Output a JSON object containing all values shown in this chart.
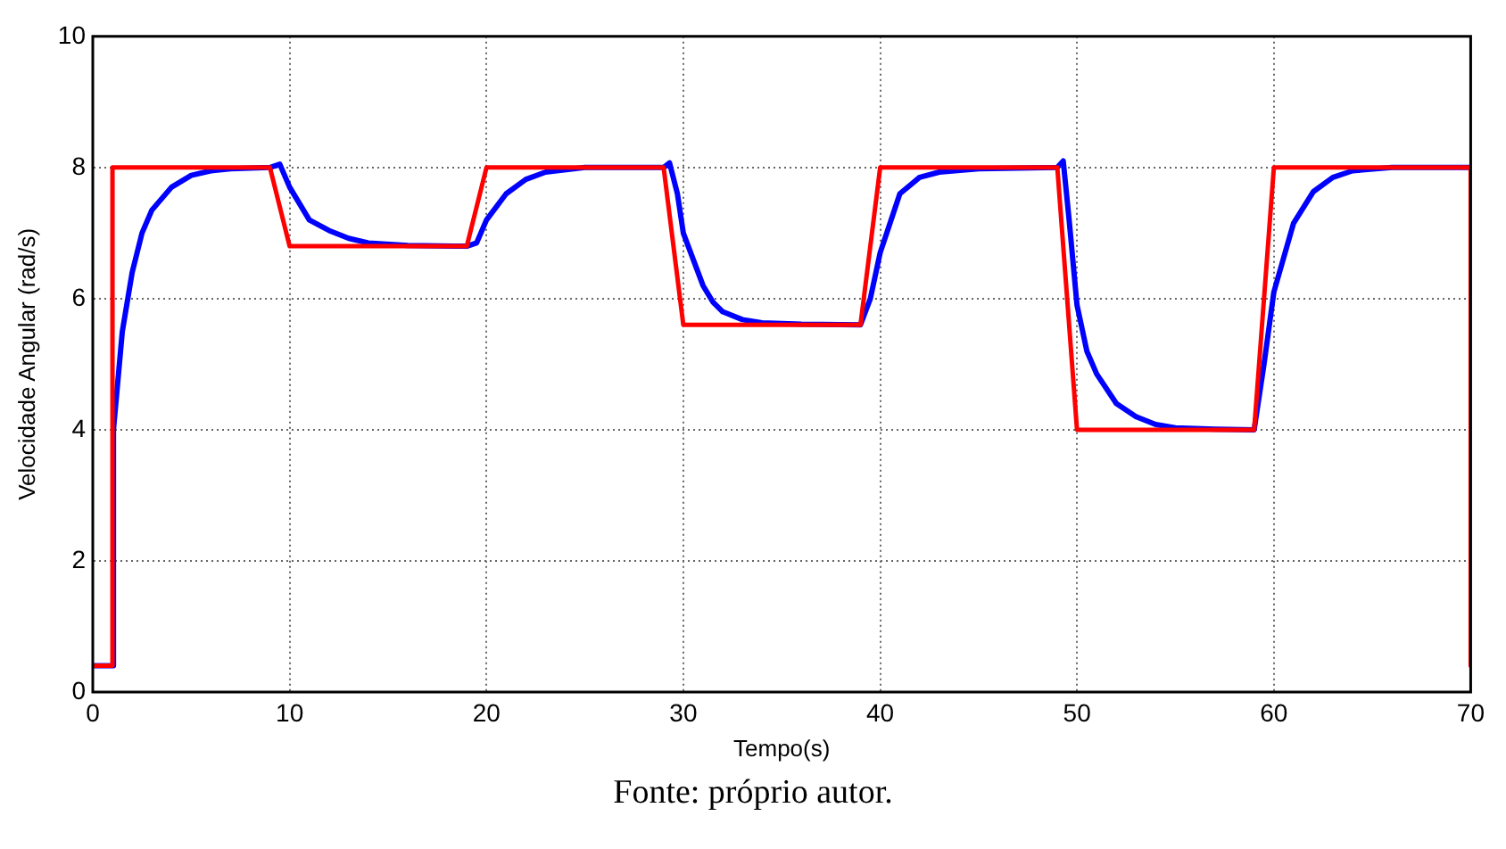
{
  "chart_data": {
    "type": "line",
    "xlabel": "Tempo(s)",
    "ylabel": "Velocidade Angular (rad/s)",
    "annotations": [
      "Fonte: próprio autor."
    ],
    "xlim": [
      0,
      70
    ],
    "xticks": [
      0,
      10,
      20,
      30,
      40,
      50,
      60,
      70
    ],
    "ylim": [
      0,
      10
    ],
    "yticks": [
      0,
      2,
      4,
      6,
      8,
      10
    ],
    "grid": true,
    "legend": false,
    "marker": "none",
    "line_style": "solid",
    "series": [
      {
        "color": "#ff0000",
        "x": [
          0,
          1,
          1,
          9,
          10,
          19,
          20,
          29,
          30,
          39,
          40,
          49,
          50,
          59,
          60,
          70,
          70
        ],
        "values": [
          0.4,
          0.4,
          8,
          8,
          6.8,
          6.8,
          8,
          8,
          5.6,
          5.6,
          8,
          8,
          4,
          4,
          8,
          8,
          0.4
        ]
      },
      {
        "color": "#0000ff",
        "x": [
          0,
          1,
          1.05,
          1.5,
          2,
          2.5,
          3,
          4,
          5,
          6,
          7,
          9,
          9.5,
          10,
          11,
          12,
          13,
          14,
          16,
          19,
          19.5,
          20,
          21,
          22,
          23,
          25,
          29,
          29.3,
          29.7,
          30,
          31,
          31.5,
          32,
          33,
          34,
          36,
          39,
          39.5,
          40,
          41,
          42,
          43,
          45,
          49,
          49.3,
          49.6,
          50,
          50.5,
          51,
          52,
          53,
          54,
          55,
          57,
          59,
          59.5,
          60,
          61,
          62,
          63,
          64,
          66,
          70
        ],
        "values": [
          0.4,
          0.4,
          4,
          5.5,
          6.4,
          7,
          7.35,
          7.7,
          7.88,
          7.95,
          7.98,
          8,
          8.05,
          7.7,
          7.2,
          7.04,
          6.92,
          6.85,
          6.81,
          6.8,
          6.85,
          7.2,
          7.6,
          7.82,
          7.93,
          8,
          8,
          8.07,
          7.6,
          7,
          6.2,
          5.95,
          5.8,
          5.68,
          5.63,
          5.61,
          5.6,
          6,
          6.7,
          7.6,
          7.85,
          7.93,
          7.98,
          8,
          8.1,
          7.2,
          5.9,
          5.2,
          4.85,
          4.4,
          4.2,
          4.08,
          4.03,
          4.01,
          4,
          5,
          6.1,
          7.15,
          7.63,
          7.85,
          7.95,
          8,
          8
        ]
      }
    ]
  }
}
